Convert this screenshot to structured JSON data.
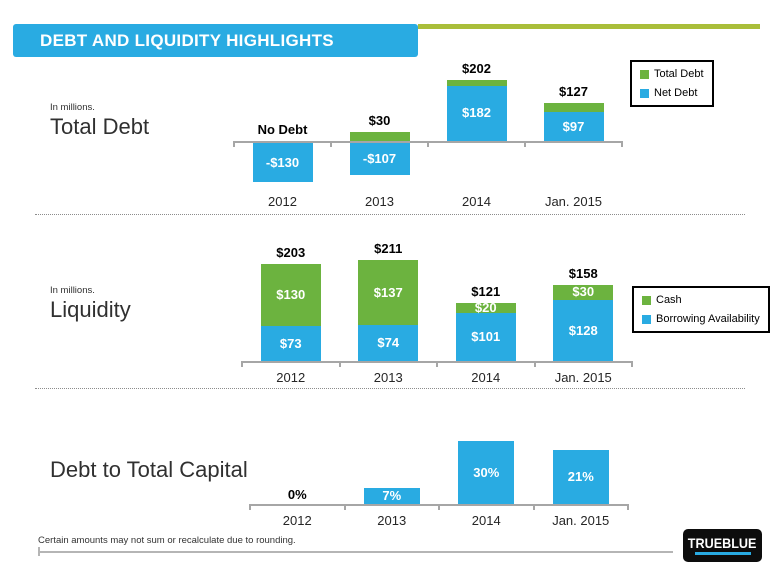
{
  "header": {
    "title": "DEBT AND LIQUIDITY HIGHLIGHTS"
  },
  "colors": {
    "blue": "#29ABE2",
    "green": "#6CB33F",
    "accent": "#A9BE3A",
    "axis": "#A6A6A6"
  },
  "chart_data": [
    {
      "type": "bar",
      "stacked": true,
      "title": "Total Debt",
      "subtitle": "In millions.",
      "categories": [
        "2012",
        "2013",
        "2014",
        "Jan. 2015"
      ],
      "series": [
        {
          "name": "Net Debt",
          "color": "blue",
          "values": [
            -130,
            -107,
            182,
            97
          ],
          "labels": [
            "-$130",
            "-$107",
            "$182",
            "$97"
          ]
        },
        {
          "name": "Total Debt",
          "color": "green",
          "values": [
            0,
            30,
            20,
            30
          ],
          "labels": [
            "",
            "",
            "",
            ""
          ]
        }
      ],
      "total_labels": [
        "No Debt",
        "$30",
        "$202",
        "$127"
      ],
      "grid": false,
      "legend": {
        "position": "top-right",
        "entries": [
          {
            "label": "Total Debt",
            "color": "green"
          },
          {
            "label": "Net Debt",
            "color": "blue"
          }
        ]
      }
    },
    {
      "type": "bar",
      "stacked": true,
      "title": "Liquidity",
      "subtitle": "In millions.",
      "categories": [
        "2012",
        "2013",
        "2014",
        "Jan. 2015"
      ],
      "series": [
        {
          "name": "Borrowing Availability",
          "color": "blue",
          "values": [
            73,
            74,
            101,
            128
          ],
          "labels": [
            "$73",
            "$74",
            "$101",
            "$128"
          ]
        },
        {
          "name": "Cash",
          "color": "green",
          "values": [
            130,
            137,
            20,
            30
          ],
          "labels": [
            "$130",
            "$137",
            "$20",
            "$30"
          ]
        }
      ],
      "total_labels": [
        "$203",
        "$211",
        "$121",
        "$158"
      ],
      "grid": false,
      "legend": {
        "position": "right",
        "entries": [
          {
            "label": "Cash",
            "color": "green"
          },
          {
            "label": "Borrowing Availability",
            "color": "blue"
          }
        ]
      }
    },
    {
      "type": "bar",
      "stacked": false,
      "title": "Debt to Total Capital",
      "categories": [
        "2012",
        "2013",
        "2014",
        "Jan. 2015"
      ],
      "series": [
        {
          "name": "Debt to Total Capital",
          "color": "blue",
          "values": [
            0,
            7,
            30,
            21
          ],
          "labels": [
            "0%",
            "7%",
            "30%",
            "21%"
          ]
        }
      ],
      "grid": false
    }
  ],
  "footer": {
    "note": "Certain amounts may not sum or recalculate due to rounding.",
    "logo_text": "TRUEBLUE"
  }
}
